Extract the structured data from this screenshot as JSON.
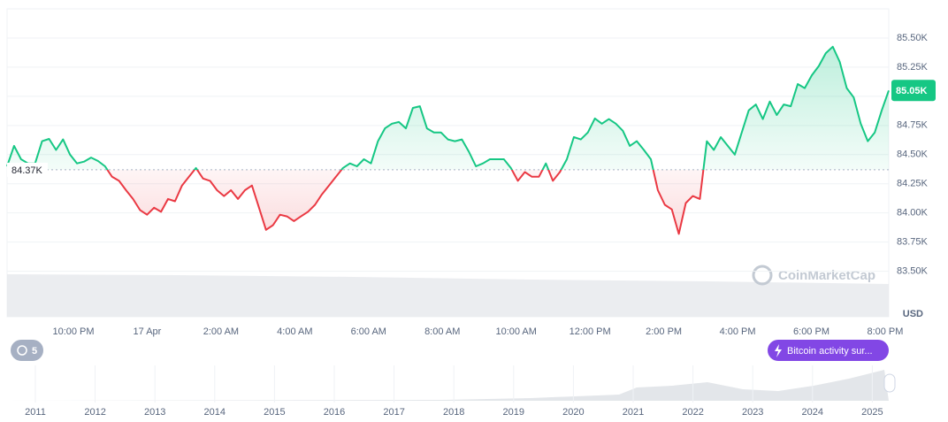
{
  "chart_data": {
    "type": "line",
    "x_labels": [
      "10:00 PM",
      "17 Apr",
      "2:00 AM",
      "4:00 AM",
      "6:00 AM",
      "8:00 AM",
      "10:00 AM",
      "12:00 PM",
      "2:00 PM",
      "4:00 PM",
      "6:00 PM",
      "8:00 PM"
    ],
    "values": [
      84400,
      84575,
      84460,
      84425,
      84425,
      84615,
      84635,
      84540,
      84630,
      84500,
      84425,
      84440,
      84475,
      84445,
      84400,
      84310,
      84275,
      84195,
      84120,
      84025,
      83985,
      84045,
      84010,
      84120,
      84100,
      84235,
      84310,
      84385,
      84295,
      84275,
      84195,
      84145,
      84195,
      84120,
      84195,
      84235,
      84045,
      83855,
      83895,
      83985,
      83970,
      83930,
      83970,
      84010,
      84070,
      84160,
      84235,
      84310,
      84385,
      84425,
      84400,
      84460,
      84425,
      84615,
      84725,
      84765,
      84780,
      84725,
      84900,
      84915,
      84725,
      84690,
      84690,
      84630,
      84615,
      84630,
      84525,
      84400,
      84425,
      84460,
      84460,
      84460,
      84385,
      84275,
      84350,
      84310,
      84310,
      84425,
      84275,
      84350,
      84460,
      84650,
      84630,
      84690,
      84810,
      84765,
      84805,
      84765,
      84705,
      84575,
      84615,
      84540,
      84460,
      84195,
      84070,
      84030,
      83820,
      84085,
      84145,
      84120,
      84615,
      84540,
      84650,
      84575,
      84500,
      84690,
      84880,
      84930,
      84805,
      84955,
      84840,
      84930,
      84915,
      85105,
      85070,
      85180,
      85260,
      85370,
      85425,
      85295,
      85070,
      84990,
      84765,
      84615,
      84690,
      84880,
      85050
    ],
    "baseline": {
      "value": 84370,
      "label": "84.37K"
    },
    "last": {
      "value": 85050,
      "label": "85.05K"
    },
    "up_color": "#16c784",
    "down_color": "#ea3943",
    "ylim": [
      83110,
      85750
    ],
    "yticks": [
      {
        "value": 83500,
        "label": "83.50K"
      },
      {
        "value": 83750,
        "label": "83.75K"
      },
      {
        "value": 84000,
        "label": "84.00K"
      },
      {
        "value": 84250,
        "label": "84.25K"
      },
      {
        "value": 84500,
        "label": "84.50K"
      },
      {
        "value": 84750,
        "label": "84.75K"
      },
      {
        "value": 85000,
        "label": "85.00K"
      },
      {
        "value": 85250,
        "label": "85.25K"
      },
      {
        "value": 85500,
        "label": "85.50K"
      }
    ],
    "grid": true,
    "currency": "USD",
    "watermark": "CoinMarketCap",
    "badge": "5",
    "alert": "Bitcoin activity sur...",
    "navigator_years": [
      "2011",
      "2012",
      "2013",
      "2014",
      "2015",
      "2016",
      "2017",
      "2018",
      "2019",
      "2020",
      "2021",
      "2022",
      "2023",
      "2024",
      "2025"
    ]
  }
}
